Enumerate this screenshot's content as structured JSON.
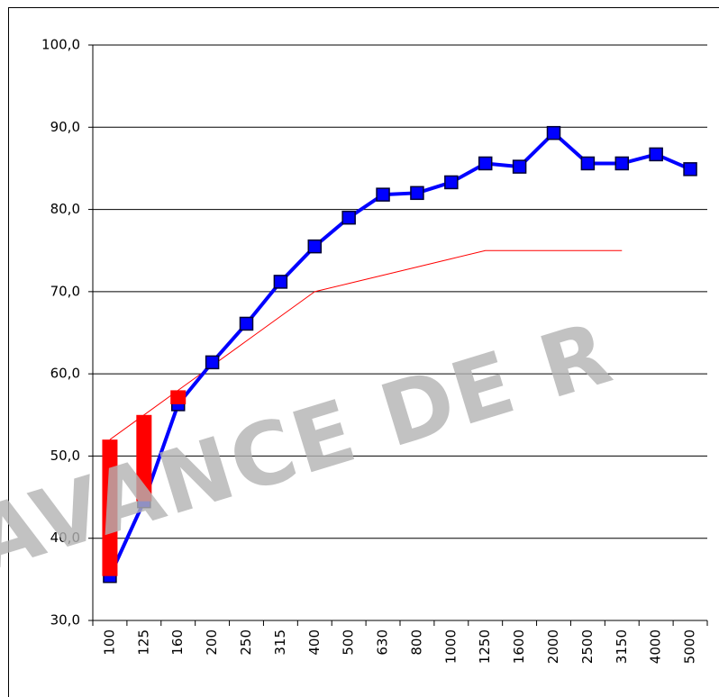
{
  "chart_data": {
    "type": "line",
    "categories": [
      "100",
      "125",
      "160",
      "200",
      "250",
      "315",
      "400",
      "500",
      "630",
      "800",
      "1000",
      "1250",
      "1600",
      "2000",
      "2500",
      "3150",
      "4000",
      "5000"
    ],
    "series": [
      {
        "color": "#0000ff",
        "values": [
          35.4,
          44.5,
          56.3,
          61.4,
          66.1,
          71.2,
          75.5,
          79.0,
          81.8,
          82.0,
          83.3,
          85.6,
          85.2,
          89.3,
          85.6,
          85.6,
          86.7,
          84.9
        ]
      },
      {
        "color": "#ff0000",
        "values": [
          52,
          55,
          58,
          61,
          64,
          67,
          70,
          71,
          72,
          73,
          74,
          75,
          75,
          75,
          75,
          75,
          null,
          null
        ]
      }
    ],
    "ylim": [
      30,
      100
    ],
    "yticks": [
      {
        "value": 30,
        "label": "30,0"
      },
      {
        "value": 40,
        "label": "40,0"
      },
      {
        "value": 50,
        "label": "50,0"
      },
      {
        "value": 60,
        "label": "60,0"
      },
      {
        "value": 70,
        "label": "70,0"
      },
      {
        "value": 80,
        "label": "80,0"
      },
      {
        "value": 90,
        "label": "90,0"
      },
      {
        "value": 100,
        "label": "100,0"
      }
    ],
    "grid": true,
    "watermark": "AVANCE DE R"
  }
}
